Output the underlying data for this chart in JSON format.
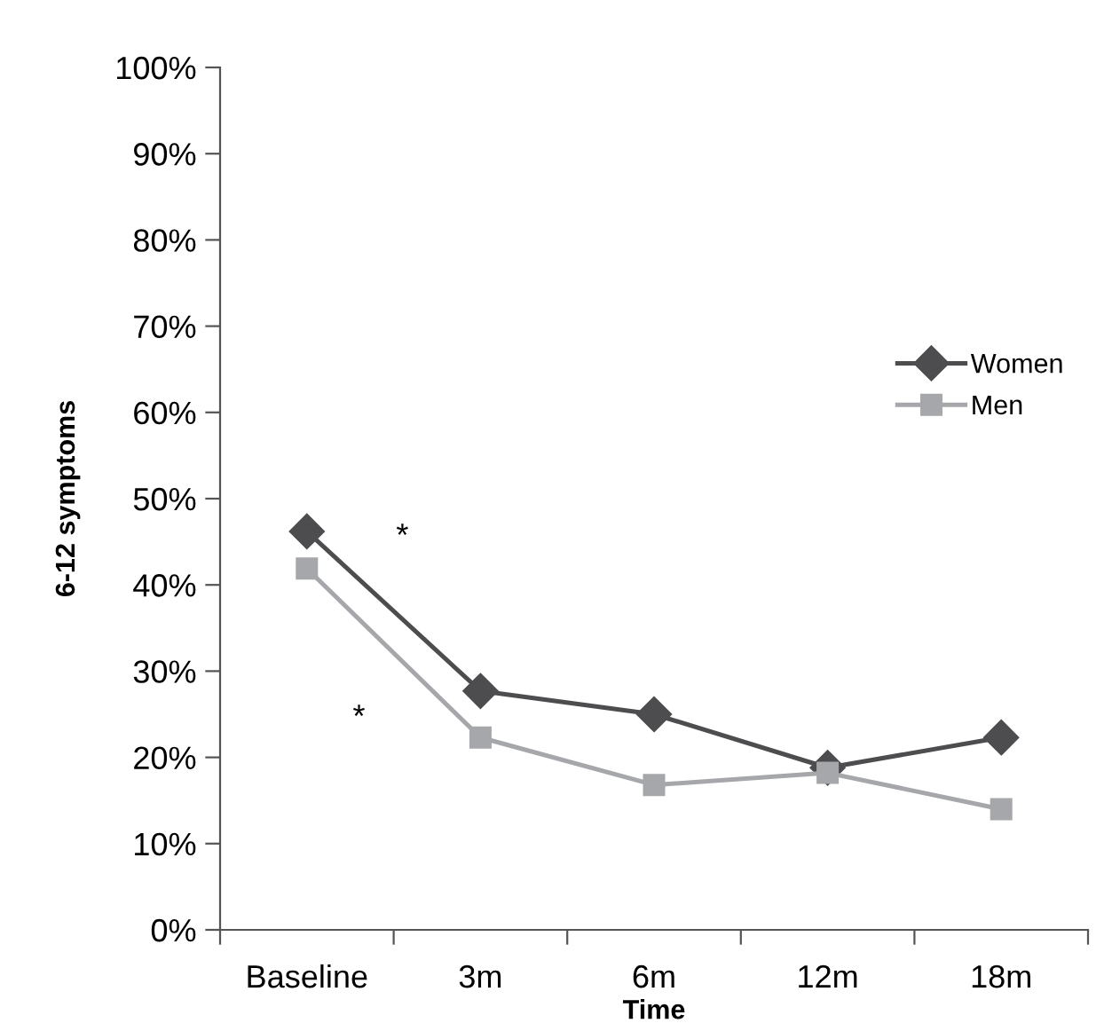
{
  "chart_data": {
    "type": "line",
    "xlabel": "Time",
    "ylabel": "6-12 symptoms",
    "categories": [
      "Baseline",
      "3m",
      "6m",
      "12m",
      "18m"
    ],
    "series": [
      {
        "name": "Women",
        "color": "#4d4d4f",
        "marker": "diamond",
        "values": [
          46.2,
          27.7,
          25.0,
          18.8,
          22.3
        ]
      },
      {
        "name": "Men",
        "color": "#a6a7aa",
        "marker": "square",
        "values": [
          41.9,
          22.3,
          16.8,
          18.2,
          14.0
        ]
      }
    ],
    "ylim": [
      0,
      100
    ],
    "yticks": [
      {
        "value": 0,
        "label": "0%"
      },
      {
        "value": 10,
        "label": "10%"
      },
      {
        "value": 20,
        "label": "20%"
      },
      {
        "value": 30,
        "label": "30%"
      },
      {
        "value": 40,
        "label": "40%"
      },
      {
        "value": 50,
        "label": "50%"
      },
      {
        "value": 60,
        "label": "60%"
      },
      {
        "value": 70,
        "label": "70%"
      },
      {
        "value": 80,
        "label": "80%"
      },
      {
        "value": 90,
        "label": "90%"
      },
      {
        "value": 100,
        "label": "100%"
      }
    ],
    "annotations": [
      "*",
      "*"
    ],
    "grid": false,
    "legend": "right",
    "line_style": "solid"
  }
}
